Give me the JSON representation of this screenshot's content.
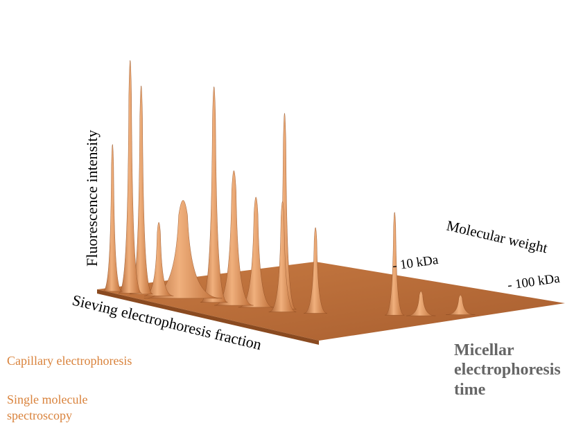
{
  "labels": {
    "fluorescence": "Fluorescence intensity",
    "sieving": "Sieving electrophoresis fraction",
    "molecular_weight": "Molecular weight",
    "mw_low": "- 10 kDa",
    "mw_high": "- 100 kDa",
    "micellar": "Micellar electrophoresis time"
  },
  "links": {
    "capillary": "Capillary electrophoresis",
    "single_molecule": "Single molecule spectroscopy"
  },
  "colors": {
    "surface": "#d9844a",
    "surface_light": "#f1b07e",
    "surface_dark": "#9a5426",
    "link": "#d9823b",
    "micellar_text": "#666666"
  },
  "chart_data": {
    "type": "surface-3d",
    "title": "",
    "xlabel": "Micellar electrophoresis time",
    "ylabel": "Sieving electrophoresis fraction",
    "zlabel": "Fluorescence intensity",
    "depth_label": "Molecular weight",
    "depth_ticks": [
      "- 10 kDa",
      "- 100 kDa"
    ],
    "peaks": [
      {
        "fraction": 0.05,
        "time": 0.02,
        "height": 0.6,
        "width": 0.01
      },
      {
        "fraction": 0.1,
        "time": 0.05,
        "height": 0.95,
        "width": 0.012
      },
      {
        "fraction": 0.13,
        "time": 0.07,
        "height": 0.85,
        "width": 0.012
      },
      {
        "fraction": 0.18,
        "time": 0.1,
        "height": 0.3,
        "width": 0.015
      },
      {
        "fraction": 0.25,
        "time": 0.14,
        "height": 0.4,
        "width": 0.04
      },
      {
        "fraction": 0.35,
        "time": 0.18,
        "height": 0.88,
        "width": 0.014
      },
      {
        "fraction": 0.42,
        "time": 0.2,
        "height": 0.55,
        "width": 0.02
      },
      {
        "fraction": 0.48,
        "time": 0.24,
        "height": 0.45,
        "width": 0.018
      },
      {
        "fraction": 0.55,
        "time": 0.3,
        "height": 0.8,
        "width": 0.012
      },
      {
        "fraction": 0.58,
        "time": 0.26,
        "height": 0.45,
        "width": 0.014
      },
      {
        "fraction": 0.65,
        "time": 0.34,
        "height": 0.35,
        "width": 0.012
      },
      {
        "fraction": 0.8,
        "time": 0.55,
        "height": 0.42,
        "width": 0.01
      },
      {
        "fraction": 0.85,
        "time": 0.62,
        "height": 0.1,
        "width": 0.015
      },
      {
        "fraction": 0.9,
        "time": 0.75,
        "height": 0.08,
        "width": 0.015
      }
    ]
  }
}
